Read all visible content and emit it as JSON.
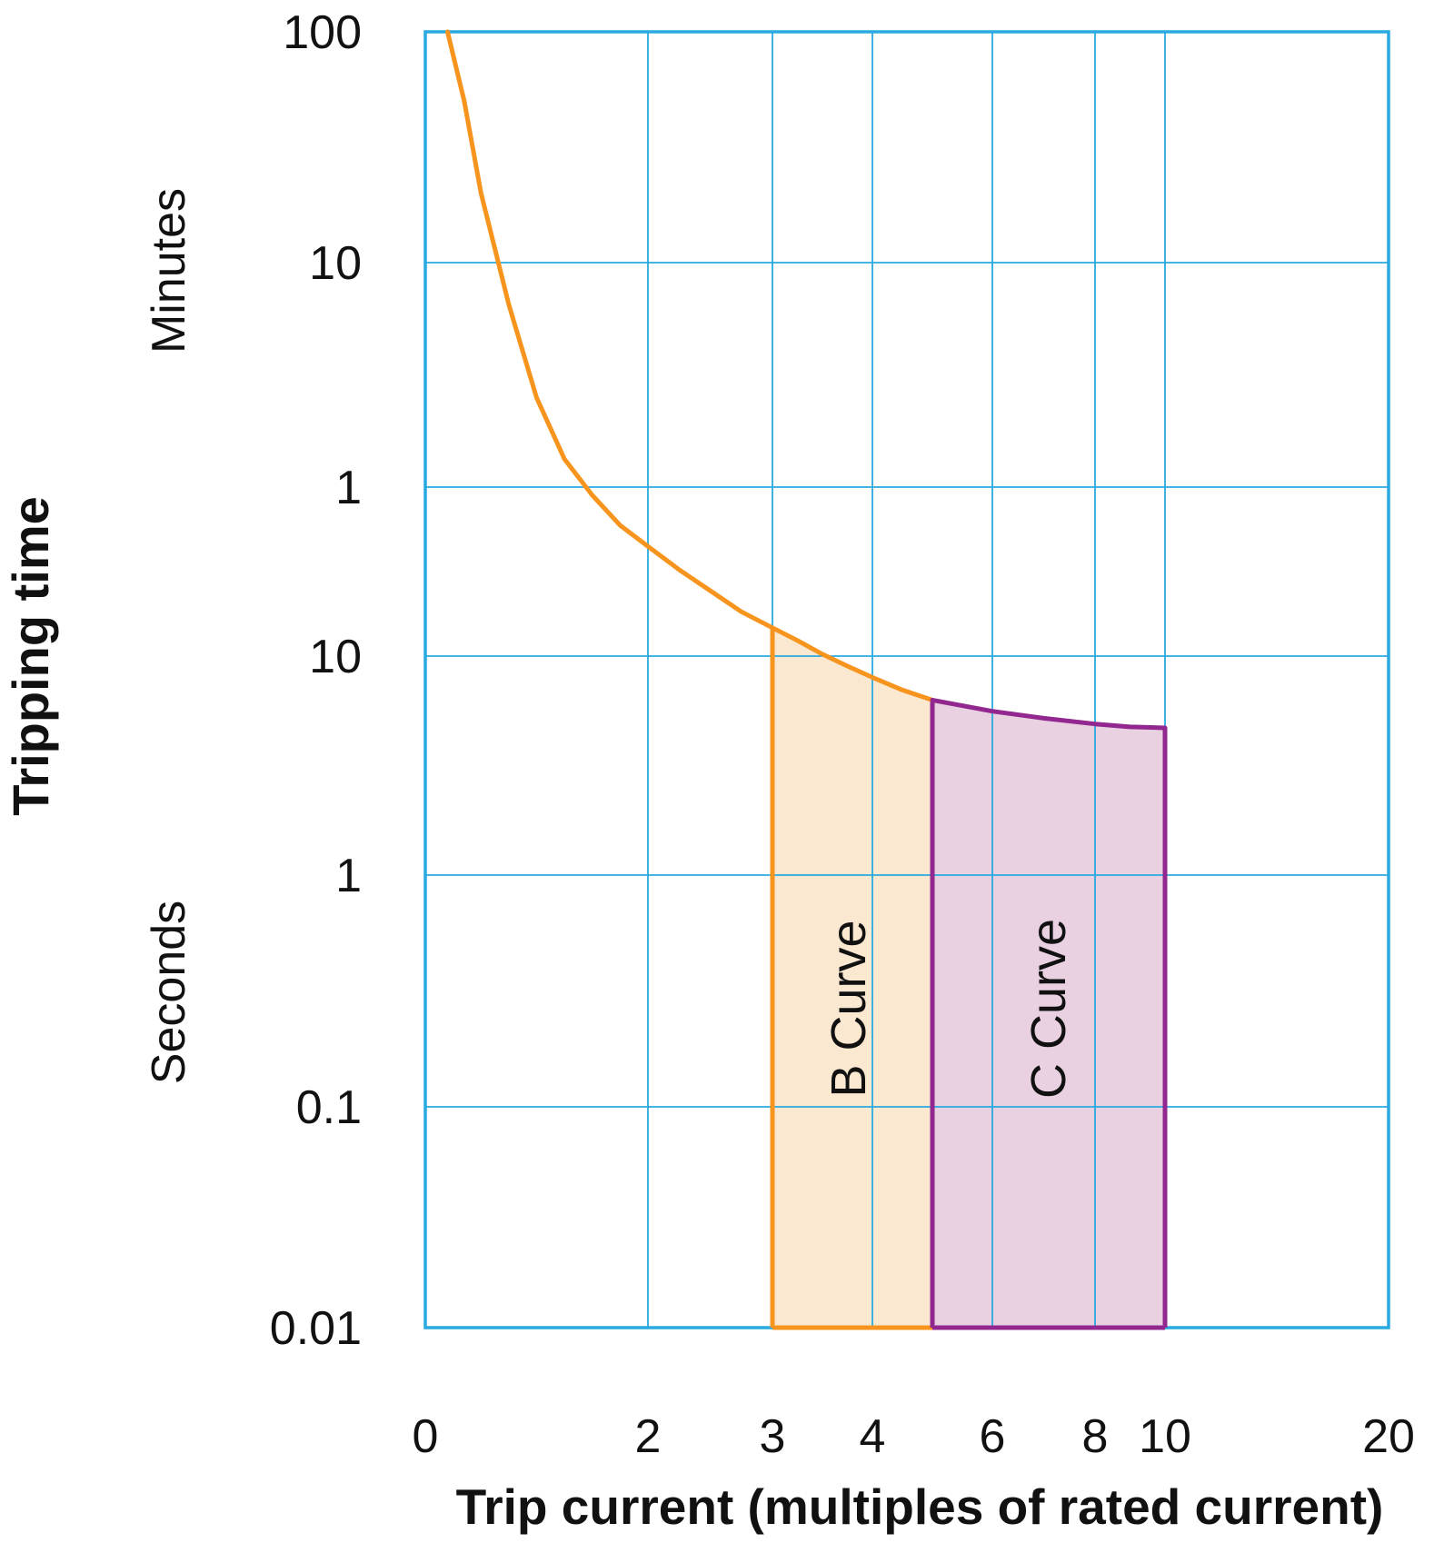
{
  "chart_data": {
    "type": "line",
    "title": "",
    "xlabel": "Trip current (multiples of rated current)",
    "ylabel": "Tripping time",
    "y_group_labels": {
      "minutes": "Minutes",
      "seconds": "Seconds"
    },
    "x_ticks": [
      {
        "value": 0,
        "label": "0"
      },
      {
        "value": 2,
        "label": "2"
      },
      {
        "value": 3,
        "label": "3"
      },
      {
        "value": 4,
        "label": "4"
      },
      {
        "value": 6,
        "label": "6"
      },
      {
        "value": 8,
        "label": "8"
      },
      {
        "value": 10,
        "label": "10"
      },
      {
        "value": 20,
        "label": "20"
      }
    ],
    "y_ticks": [
      {
        "seconds": 6000,
        "label": "100",
        "unit": "minutes"
      },
      {
        "seconds": 600,
        "label": "10",
        "unit": "minutes"
      },
      {
        "seconds": 60,
        "label": "1",
        "unit": "minutes"
      },
      {
        "seconds": 10,
        "label": "10",
        "unit": "seconds"
      },
      {
        "seconds": 1,
        "label": "1",
        "unit": "seconds"
      },
      {
        "seconds": 0.1,
        "label": "0.1",
        "unit": "seconds"
      },
      {
        "seconds": 0.01,
        "label": "0.01",
        "unit": "seconds"
      }
    ],
    "grid": true,
    "series": [
      {
        "name": "Tripping curve (B region)",
        "color": "#F7941D",
        "x": [
          0.2,
          0.35,
          0.5,
          0.75,
          1.0,
          1.25,
          1.5,
          1.75,
          2.0,
          2.25,
          2.5,
          2.75,
          3.0,
          3.25,
          3.5,
          3.75,
          4.0,
          4.5,
          5.0
        ],
        "y": [
          6000,
          3000,
          1200,
          390,
          150,
          80,
          55,
          40,
          32,
          25,
          20,
          16,
          13.5,
          11.8,
          10.2,
          9.0,
          8.0,
          7.0,
          6.3
        ]
      },
      {
        "name": "Tripping curve (C region)",
        "color": "#92278F",
        "x": [
          5.0,
          6.0,
          7.0,
          8.0,
          9.0,
          10.0
        ],
        "y": [
          6.3,
          5.6,
          5.2,
          4.9,
          4.75,
          4.7
        ]
      }
    ],
    "regions": [
      {
        "name": "B Curve",
        "label": "B Curve",
        "x_range": [
          3,
          5
        ],
        "fill": "#FBE8D1",
        "stroke": "#F7941D"
      },
      {
        "name": "C Curve",
        "label": "C Curve",
        "x_range": [
          5,
          10
        ],
        "fill": "#E9D1E2",
        "stroke": "#92278F"
      }
    ],
    "colors": {
      "grid": "#29A9E0"
    }
  }
}
